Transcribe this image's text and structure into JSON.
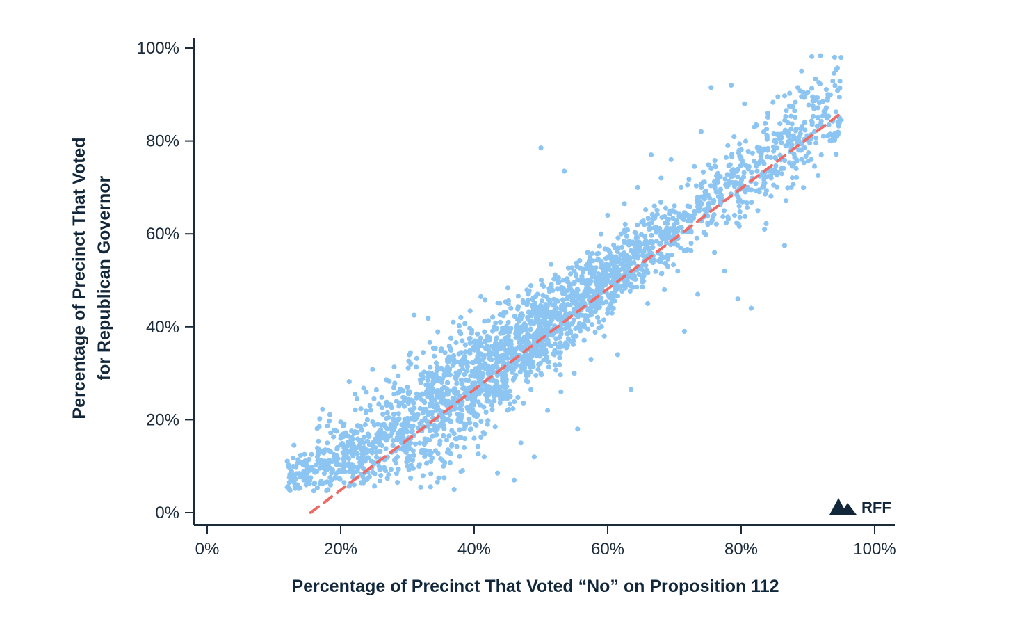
{
  "colors": {
    "points": "#8cc4f2",
    "trendline": "#ee6a66",
    "axis": "#1b2b3a",
    "text": "#12283a",
    "logo": "#12283a"
  },
  "logo": {
    "icon": "mountain-logo-icon",
    "text": "RFF"
  },
  "chart_data": {
    "type": "scatter",
    "title": "",
    "xlabel": "Percentage of Precinct That Voted “No” on Proposition 112",
    "ylabel": [
      "Percentage of Precinct That Voted",
      "for Republican Governor"
    ],
    "xlim": [
      -0.01,
      1.03
    ],
    "ylim": [
      -0.03,
      1.02
    ],
    "x_ticks": [
      {
        "value": 0,
        "label": "0%"
      },
      {
        "value": 0.2,
        "label": "20%"
      },
      {
        "value": 0.4,
        "label": "40%"
      },
      {
        "value": 0.6,
        "label": "60%"
      },
      {
        "value": 0.8,
        "label": "80%"
      },
      {
        "value": 1.0,
        "label": "100%"
      }
    ],
    "y_ticks": [
      {
        "value": 0,
        "label": "0%"
      },
      {
        "value": 0.2,
        "label": "20%"
      },
      {
        "value": 0.4,
        "label": "40%"
      },
      {
        "value": 0.6,
        "label": "60%"
      },
      {
        "value": 0.8,
        "label": "80%"
      },
      {
        "value": 1.0,
        "label": "100%"
      }
    ],
    "grid": false,
    "legend": "none",
    "trendline": {
      "style": "dashed",
      "x": [
        0.155,
        0.95
      ],
      "y": [
        0.0,
        0.86
      ]
    },
    "series": [
      {
        "points": [
          [
            0.12,
            0.055
          ],
          [
            0.125,
            0.07
          ],
          [
            0.13,
            0.065
          ],
          [
            0.13,
            0.145
          ],
          [
            0.135,
            0.06
          ],
          [
            0.14,
            0.08
          ],
          [
            0.145,
            0.07
          ],
          [
            0.15,
            0.085
          ],
          [
            0.15,
            0.1
          ],
          [
            0.155,
            0.075
          ],
          [
            0.16,
            0.09
          ],
          [
            0.165,
            0.12
          ],
          [
            0.17,
            0.105
          ],
          [
            0.175,
            0.13
          ],
          [
            0.18,
            0.11
          ],
          [
            0.18,
            0.15
          ],
          [
            0.185,
            0.095
          ],
          [
            0.19,
            0.125
          ],
          [
            0.195,
            0.14
          ],
          [
            0.2,
            0.16
          ],
          [
            0.2,
            0.195
          ],
          [
            0.205,
            0.11
          ],
          [
            0.21,
            0.13
          ],
          [
            0.215,
            0.155
          ],
          [
            0.22,
            0.17
          ],
          [
            0.22,
            0.06
          ],
          [
            0.225,
            0.09
          ],
          [
            0.23,
            0.185
          ],
          [
            0.235,
            0.14
          ],
          [
            0.24,
            0.2
          ],
          [
            0.245,
            0.22
          ],
          [
            0.25,
            0.105
          ],
          [
            0.25,
            0.245
          ],
          [
            0.255,
            0.16
          ],
          [
            0.26,
            0.08
          ],
          [
            0.265,
            0.19
          ],
          [
            0.27,
            0.215
          ],
          [
            0.275,
            0.23
          ],
          [
            0.28,
            0.255
          ],
          [
            0.285,
            0.065
          ],
          [
            0.285,
            0.12
          ],
          [
            0.29,
            0.175
          ],
          [
            0.295,
            0.24
          ],
          [
            0.3,
            0.1
          ],
          [
            0.3,
            0.27
          ],
          [
            0.305,
            0.32
          ],
          [
            0.31,
            0.21
          ],
          [
            0.31,
            0.425
          ],
          [
            0.315,
            0.255
          ],
          [
            0.32,
            0.055
          ],
          [
            0.32,
            0.28
          ],
          [
            0.325,
            0.15
          ],
          [
            0.33,
            0.3
          ],
          [
            0.335,
            0.11
          ],
          [
            0.34,
            0.26
          ],
          [
            0.345,
            0.18
          ],
          [
            0.35,
            0.31
          ],
          [
            0.355,
            0.075
          ],
          [
            0.36,
            0.13
          ],
          [
            0.36,
            0.28
          ],
          [
            0.365,
            0.22
          ],
          [
            0.37,
            0.05
          ],
          [
            0.37,
            0.17
          ],
          [
            0.375,
            0.3
          ],
          [
            0.38,
            0.2
          ],
          [
            0.38,
            0.42
          ],
          [
            0.385,
            0.14
          ],
          [
            0.39,
            0.245
          ],
          [
            0.395,
            0.18
          ],
          [
            0.4,
            0.35
          ],
          [
            0.4,
            0.16
          ],
          [
            0.405,
            0.21
          ],
          [
            0.41,
            0.465
          ],
          [
            0.41,
            0.28
          ],
          [
            0.415,
            0.12
          ],
          [
            0.42,
            0.19
          ],
          [
            0.425,
            0.33
          ],
          [
            0.43,
            0.4
          ],
          [
            0.43,
            0.24
          ],
          [
            0.435,
            0.085
          ],
          [
            0.44,
            0.3
          ],
          [
            0.445,
            0.36
          ],
          [
            0.45,
            0.22
          ],
          [
            0.455,
            0.44
          ],
          [
            0.46,
            0.07
          ],
          [
            0.46,
            0.29
          ],
          [
            0.465,
            0.38
          ],
          [
            0.47,
            0.15
          ],
          [
            0.475,
            0.325
          ],
          [
            0.48,
            0.42
          ],
          [
            0.485,
            0.265
          ],
          [
            0.49,
            0.12
          ],
          [
            0.49,
            0.345
          ],
          [
            0.495,
            0.47
          ],
          [
            0.5,
            0.785
          ],
          [
            0.5,
            0.3
          ],
          [
            0.505,
            0.38
          ],
          [
            0.51,
            0.22
          ],
          [
            0.515,
            0.43
          ],
          [
            0.52,
            0.34
          ],
          [
            0.525,
            0.5
          ],
          [
            0.53,
            0.26
          ],
          [
            0.535,
            0.735
          ],
          [
            0.535,
            0.41
          ],
          [
            0.54,
            0.36
          ],
          [
            0.545,
            0.48
          ],
          [
            0.55,
            0.3
          ],
          [
            0.55,
            0.52
          ],
          [
            0.555,
            0.18
          ],
          [
            0.56,
            0.44
          ],
          [
            0.565,
            0.4
          ],
          [
            0.57,
            0.56
          ],
          [
            0.575,
            0.33
          ],
          [
            0.58,
            0.47
          ],
          [
            0.585,
            0.42
          ],
          [
            0.59,
            0.6
          ],
          [
            0.595,
            0.38
          ],
          [
            0.6,
            0.5
          ],
          [
            0.6,
            0.64
          ],
          [
            0.605,
            0.45
          ],
          [
            0.61,
            0.55
          ],
          [
            0.615,
            0.34
          ],
          [
            0.62,
            0.6
          ],
          [
            0.625,
            0.665
          ],
          [
            0.63,
            0.49
          ],
          [
            0.635,
            0.265
          ],
          [
            0.64,
            0.58
          ],
          [
            0.645,
            0.7
          ],
          [
            0.65,
            0.53
          ],
          [
            0.655,
            0.62
          ],
          [
            0.66,
            0.45
          ],
          [
            0.665,
            0.77
          ],
          [
            0.67,
            0.66
          ],
          [
            0.675,
            0.56
          ],
          [
            0.68,
            0.72
          ],
          [
            0.685,
            0.48
          ],
          [
            0.69,
            0.63
          ],
          [
            0.695,
            0.76
          ],
          [
            0.7,
            0.6
          ],
          [
            0.705,
            0.52
          ],
          [
            0.71,
            0.7
          ],
          [
            0.715,
            0.39
          ],
          [
            0.72,
            0.66
          ],
          [
            0.725,
            0.58
          ],
          [
            0.73,
            0.745
          ],
          [
            0.735,
            0.47
          ],
          [
            0.74,
            0.82
          ],
          [
            0.745,
            0.68
          ],
          [
            0.75,
            0.62
          ],
          [
            0.755,
            0.915
          ],
          [
            0.76,
            0.56
          ],
          [
            0.765,
            0.73
          ],
          [
            0.77,
            0.67
          ],
          [
            0.775,
            0.52
          ],
          [
            0.78,
            0.79
          ],
          [
            0.785,
            0.92
          ],
          [
            0.79,
            0.64
          ],
          [
            0.795,
            0.46
          ],
          [
            0.8,
            0.76
          ],
          [
            0.805,
            0.88
          ],
          [
            0.81,
            0.7
          ],
          [
            0.815,
            0.44
          ],
          [
            0.82,
            0.83
          ],
          [
            0.825,
            0.65
          ],
          [
            0.83,
            0.77
          ],
          [
            0.835,
            0.61
          ],
          [
            0.84,
            0.86
          ],
          [
            0.845,
            0.72
          ],
          [
            0.85,
            0.8
          ],
          [
            0.855,
            0.895
          ],
          [
            0.86,
            0.74
          ],
          [
            0.865,
            0.575
          ],
          [
            0.87,
            0.82
          ],
          [
            0.875,
            0.7
          ],
          [
            0.88,
            0.865
          ],
          [
            0.885,
            0.915
          ],
          [
            0.89,
            0.78
          ],
          [
            0.895,
            0.84
          ],
          [
            0.9,
            0.905
          ],
          [
            0.905,
            0.76
          ],
          [
            0.91,
            0.82
          ],
          [
            0.915,
            0.85
          ],
          [
            0.92,
            0.77
          ],
          [
            0.925,
            0.86
          ],
          [
            0.93,
            0.9
          ],
          [
            0.935,
            0.8
          ],
          [
            0.94,
            0.98
          ],
          [
            0.945,
            0.84
          ],
          [
            0.95,
            0.845
          ]
        ]
      }
    ]
  }
}
